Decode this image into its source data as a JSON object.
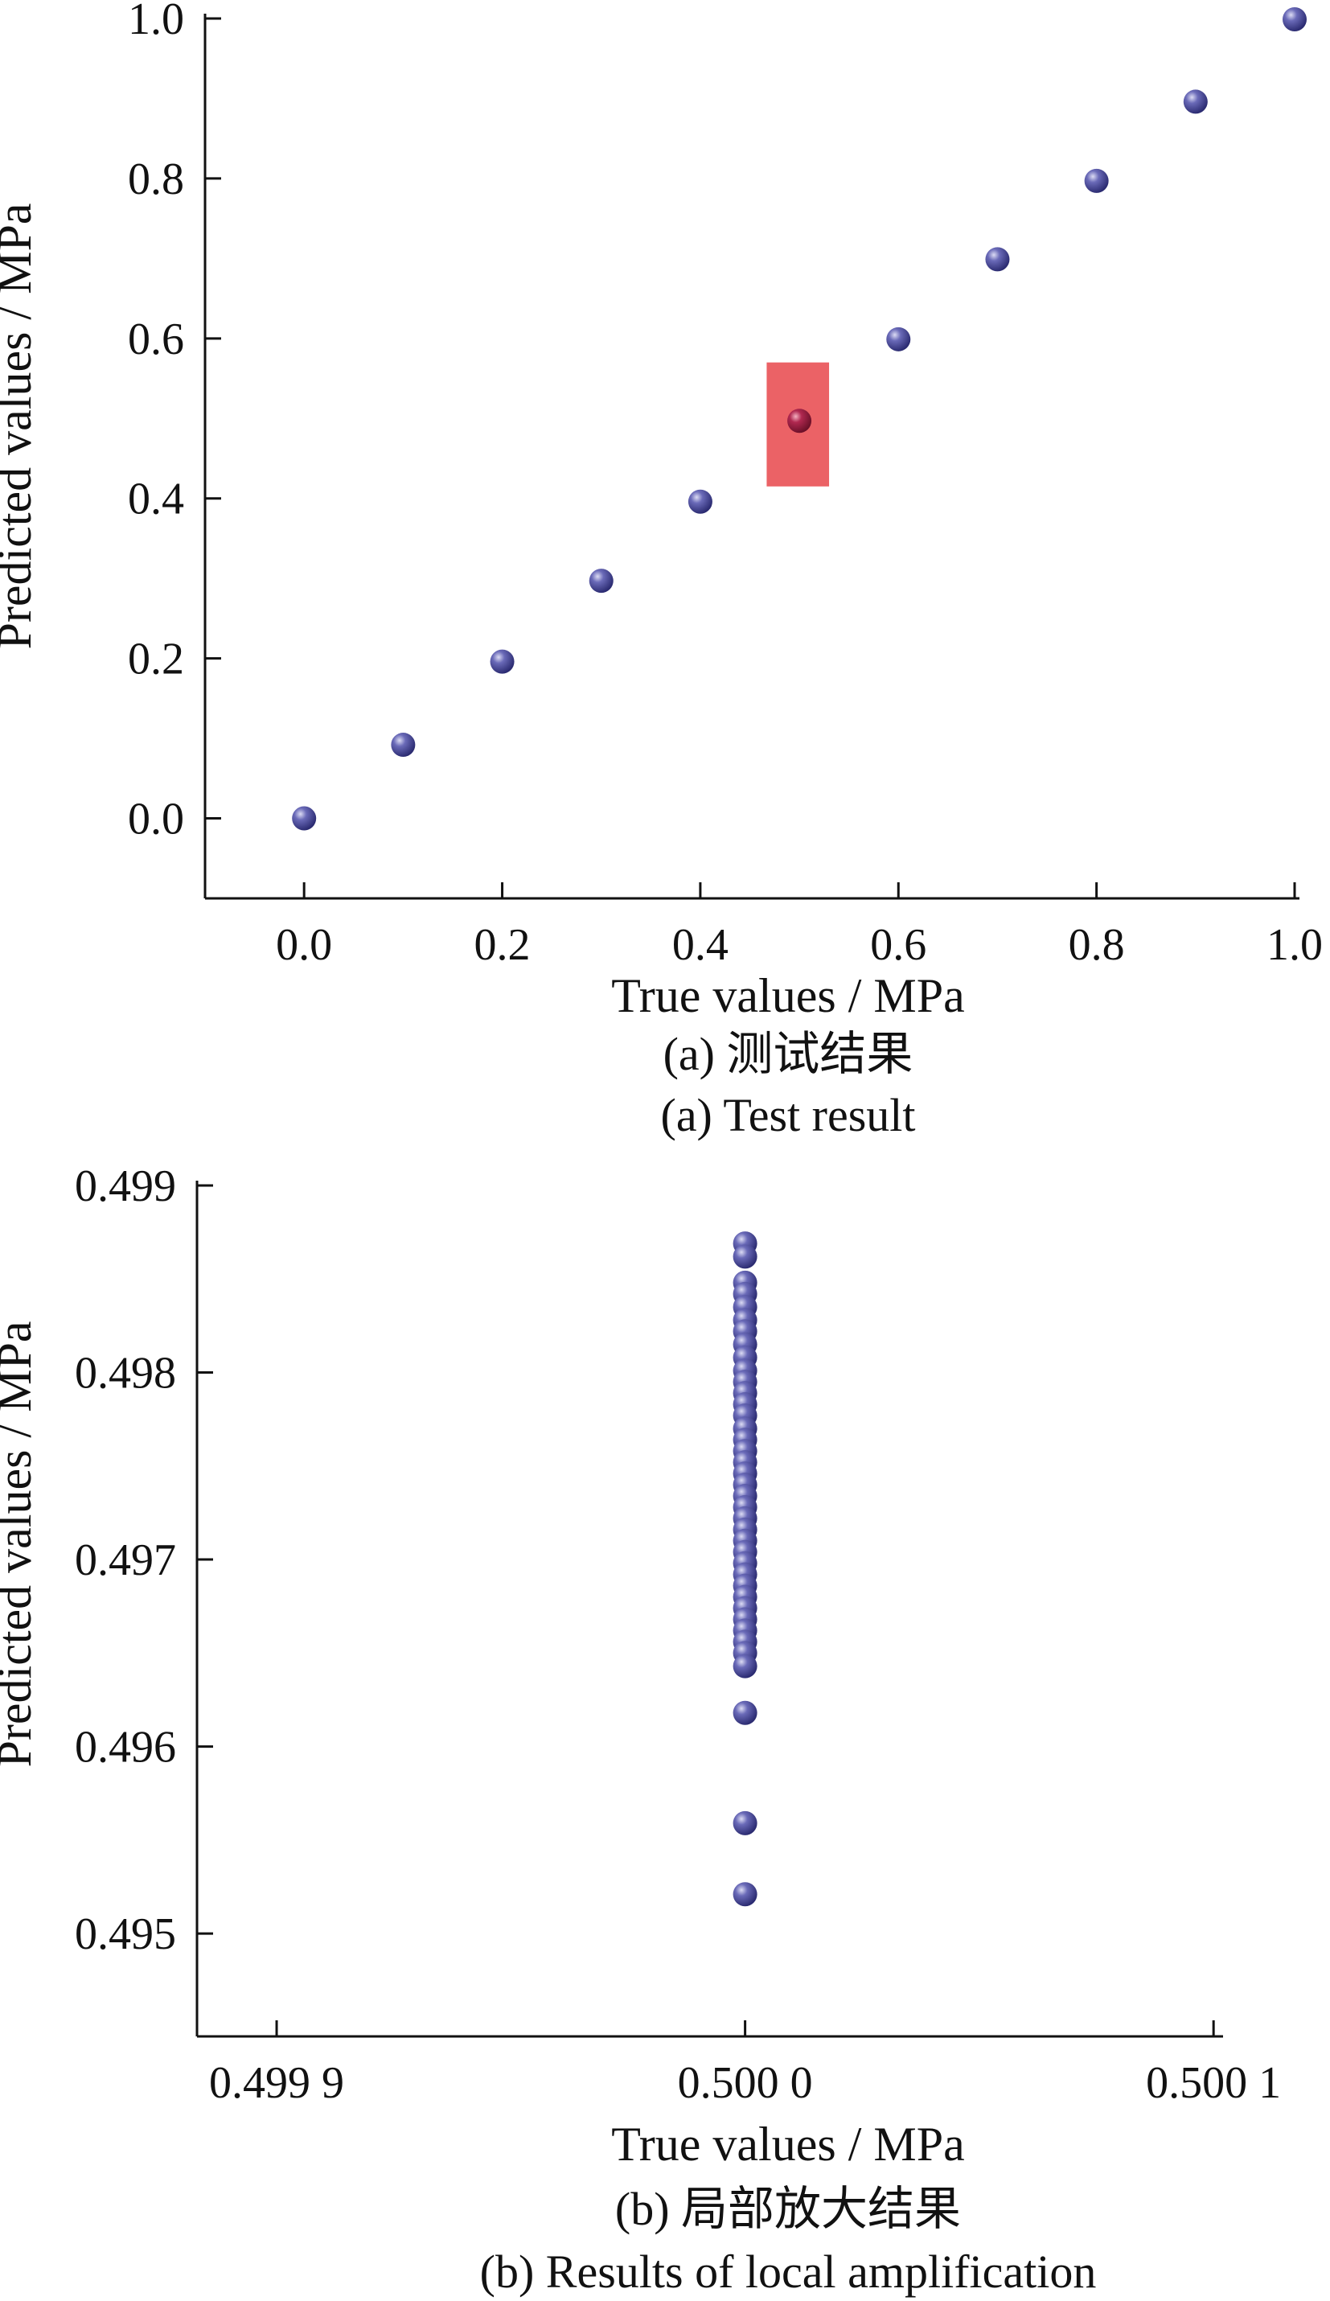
{
  "chart_data": [
    {
      "type": "scatter",
      "title": "",
      "xlabel": "True values / MPa",
      "ylabel": "Predicted values / MPa",
      "caption_cn": "(a) 测试结果",
      "caption_en": "(a) Test result",
      "xlim": [
        -0.1,
        1.0
      ],
      "ylim": [
        -0.1,
        1.0
      ],
      "xticks": [
        0.0,
        0.2,
        0.4,
        0.6,
        0.8,
        1.0
      ],
      "xtick_labels": [
        "0.0",
        "0.2",
        "0.4",
        "0.6",
        "0.8",
        "1.0"
      ],
      "yticks": [
        0.0,
        0.2,
        0.4,
        0.6,
        0.8,
        1.0
      ],
      "ytick_labels": [
        "0.0",
        "0.2",
        "0.4",
        "0.6",
        "0.8",
        "1.0"
      ],
      "highlight": {
        "x": [
          0.467,
          0.53
        ],
        "y": [
          0.415,
          0.57
        ],
        "color": "#e8474b"
      },
      "point_color": "#4a4a9a",
      "highlight_point_color": "#a02040",
      "points": [
        {
          "x": 0.0,
          "y": 0.0
        },
        {
          "x": 0.1,
          "y": 0.092
        },
        {
          "x": 0.2,
          "y": 0.196
        },
        {
          "x": 0.3,
          "y": 0.297
        },
        {
          "x": 0.4,
          "y": 0.396
        },
        {
          "x": 0.5,
          "y": 0.497
        },
        {
          "x": 0.6,
          "y": 0.599
        },
        {
          "x": 0.7,
          "y": 0.699
        },
        {
          "x": 0.8,
          "y": 0.797
        },
        {
          "x": 0.9,
          "y": 0.896
        },
        {
          "x": 1.0,
          "y": 0.999
        }
      ],
      "highlight_index": 5
    },
    {
      "type": "scatter",
      "title": "",
      "xlabel": "True values / MPa",
      "ylabel": "Predicted values / MPa",
      "caption_cn": "(b) 局部放大结果",
      "caption_en": "(b) Results of local amplification",
      "xlim": [
        0.499883,
        0.500101
      ],
      "ylim": [
        0.49445,
        0.499
      ],
      "xticks": [
        0.4999,
        0.5,
        0.5001
      ],
      "xtick_labels": [
        "0.499 9",
        "0.500 0",
        "0.500 1"
      ],
      "yticks": [
        0.495,
        0.496,
        0.497,
        0.498,
        0.499
      ],
      "ytick_labels": [
        "0.495",
        "0.496",
        "0.497",
        "0.498",
        "0.499"
      ],
      "point_color": "#4a4a9a",
      "x_value": 0.5,
      "y_values": [
        0.49869,
        0.49862,
        0.49848,
        0.49842,
        0.49835,
        0.49828,
        0.49822,
        0.49815,
        0.49808,
        0.49801,
        0.49795,
        0.49789,
        0.49783,
        0.49777,
        0.4977,
        0.49764,
        0.49758,
        0.49752,
        0.49746,
        0.4974,
        0.49734,
        0.49728,
        0.49722,
        0.49716,
        0.4971,
        0.49704,
        0.49698,
        0.49692,
        0.49686,
        0.4968,
        0.49674,
        0.49668,
        0.49662,
        0.49656,
        0.4965,
        0.49643,
        0.49618,
        0.49559,
        0.49521
      ]
    }
  ]
}
